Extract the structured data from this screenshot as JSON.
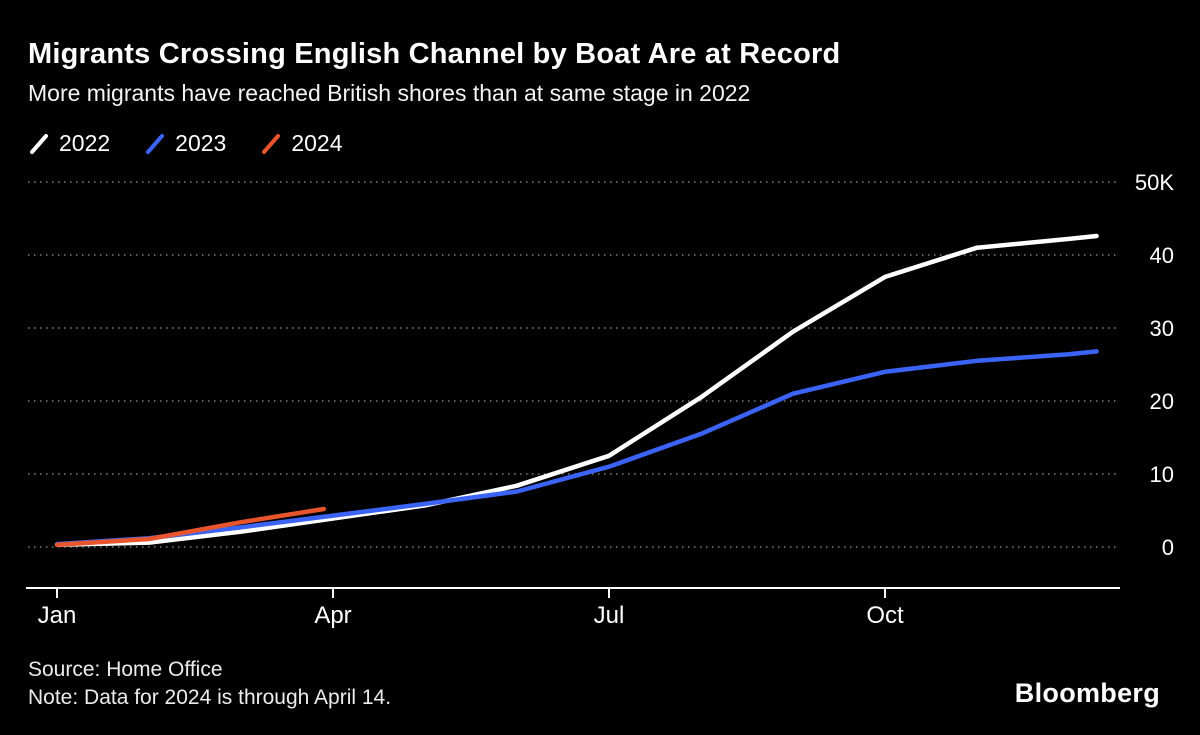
{
  "header": {
    "title": "Migrants Crossing English Channel by Boat Are at Record",
    "subtitle": "More migrants have reached British shores than at same stage in 2022"
  },
  "legend": [
    {
      "label": "2022",
      "color": "#FFFFFF"
    },
    {
      "label": "2023",
      "color": "#3B64F6"
    },
    {
      "label": "2024",
      "color": "#E8542C"
    }
  ],
  "chart_data": {
    "type": "line",
    "title": "Migrants Crossing English Channel by Boat Are at Record",
    "subtitle": "More migrants have reached British shores than at same stage in 2022",
    "unit": "cumulative crossings, thousands",
    "x_unit": "months (0 = Jan)",
    "xlim": [
      0,
      11.5
    ],
    "ylim": [
      0,
      50
    ],
    "grid": "horizontal-dotted",
    "legend_position": "top-left",
    "x_ticks": [
      {
        "pos": 0,
        "label": "Jan"
      },
      {
        "pos": 3,
        "label": "Apr"
      },
      {
        "pos": 6,
        "label": "Jul"
      },
      {
        "pos": 9,
        "label": "Oct"
      }
    ],
    "y_ticks": [
      {
        "value": 50,
        "label": "50K"
      },
      {
        "value": 40,
        "label": "40"
      },
      {
        "value": 30,
        "label": "30"
      },
      {
        "value": 20,
        "label": "20"
      },
      {
        "value": 10,
        "label": "10"
      },
      {
        "value": 0,
        "label": "0"
      }
    ],
    "series": [
      {
        "name": "2022",
        "color": "#FFFFFF",
        "points": [
          [
            0,
            0.3
          ],
          [
            1,
            0.6
          ],
          [
            2,
            2.1
          ],
          [
            3,
            3.9
          ],
          [
            4,
            5.7
          ],
          [
            5,
            8.4
          ],
          [
            6,
            12.5
          ],
          [
            7,
            20.5
          ],
          [
            8,
            29.5
          ],
          [
            9,
            37.0
          ],
          [
            10,
            41.0
          ],
          [
            11,
            42.2
          ],
          [
            11.3,
            42.6
          ]
        ]
      },
      {
        "name": "2023",
        "color": "#3B64F6",
        "points": [
          [
            0,
            0.4
          ],
          [
            1,
            1.2
          ],
          [
            2,
            2.7
          ],
          [
            3,
            4.3
          ],
          [
            4,
            5.9
          ],
          [
            5,
            7.6
          ],
          [
            6,
            11.0
          ],
          [
            7,
            15.5
          ],
          [
            8,
            21.0
          ],
          [
            9,
            24.0
          ],
          [
            10,
            25.5
          ],
          [
            11,
            26.4
          ],
          [
            11.3,
            26.8
          ]
        ]
      },
      {
        "name": "2024",
        "color": "#E8542C",
        "points": [
          [
            0,
            0.3
          ],
          [
            1,
            1.1
          ],
          [
            2,
            3.4
          ],
          [
            2.9,
            5.2
          ]
        ],
        "ends_at": "Apr 14"
      }
    ]
  },
  "footer": {
    "source": "Source: Home Office",
    "note": "Note: Data for 2024 is through April 14.",
    "brand": "Bloomberg"
  }
}
